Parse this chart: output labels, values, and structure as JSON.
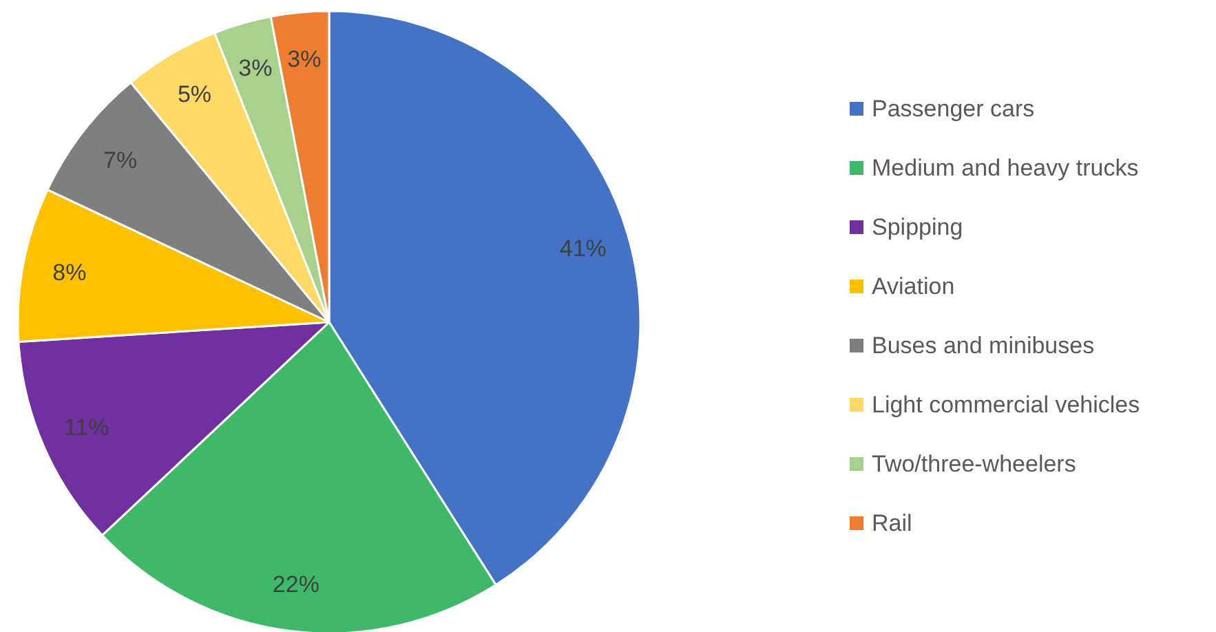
{
  "chart_data": {
    "type": "pie",
    "categories": [
      "Passenger cars",
      "Medium and heavy trucks",
      "Spipping",
      "Aviation",
      "Buses and minibuses",
      "Light commercial vehicles",
      "Two/three-wheelers",
      "Rail"
    ],
    "values": [
      41,
      22,
      11,
      8,
      7,
      5,
      3,
      3
    ],
    "value_labels": [
      "41%",
      "22%",
      "11%",
      "8%",
      "7%",
      "5%",
      "3%",
      "3%"
    ],
    "colors": [
      "#4472c4",
      "#3fb86a",
      "#7030a0",
      "#ffc000",
      "#7f7f7f",
      "#ffd966",
      "#a9d18e",
      "#ed7d31"
    ],
    "legend": "right"
  }
}
